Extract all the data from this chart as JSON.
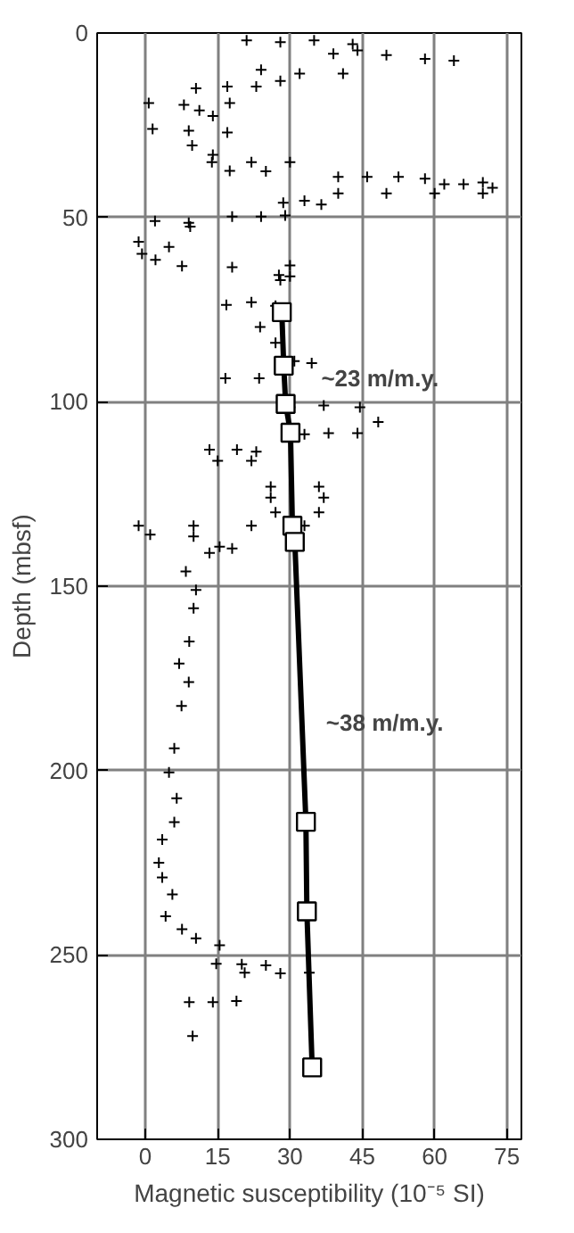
{
  "chart_data": {
    "type": "scatter",
    "xlabel": "Magnetic susceptibility (10⁻⁵ SI)",
    "ylabel": "Depth (mbsf)",
    "xlim": [
      -10,
      78
    ],
    "ylim": [
      300,
      0
    ],
    "xticks": [
      0,
      15,
      30,
      45,
      60,
      75
    ],
    "yticks": [
      0,
      50,
      100,
      150,
      200,
      250,
      300
    ],
    "grid": true,
    "series": [
      {
        "marker": "cross",
        "color": "#000000",
        "x": [
          21,
          28,
          35,
          43,
          39,
          44,
          50,
          58,
          64,
          24,
          32,
          41,
          28,
          10.5,
          17,
          23,
          0.7,
          8,
          17.5,
          11.2,
          14,
          1.5,
          9,
          17,
          9.7,
          14,
          13.8,
          22,
          30,
          17.5,
          25,
          40,
          46,
          52.5,
          58,
          62,
          66,
          70,
          72,
          40,
          50,
          60,
          70,
          28.6,
          33,
          36.5,
          18,
          24,
          29,
          2,
          9,
          9.3,
          -1.4,
          4.9,
          -0.7,
          2.1,
          7.6,
          18,
          30,
          27.7,
          30,
          28,
          16.8,
          22,
          27,
          23.8,
          27,
          30.9,
          34.5,
          16.6,
          23.6,
          30,
          37,
          44.5,
          48.3,
          33,
          38,
          44,
          13.3,
          19,
          23,
          15,
          22,
          26,
          36,
          26,
          37,
          27,
          36,
          -1.4,
          10,
          22,
          33,
          1,
          10,
          15.4,
          18,
          13.3,
          8.4,
          10.5,
          10,
          9.1,
          7,
          9,
          7.5,
          6,
          4.9,
          6.5,
          6,
          3.5,
          2.8,
          3.5,
          5.6,
          4.2,
          7.6,
          10.5,
          15.4,
          14.7,
          20,
          25,
          20.6,
          28,
          34,
          9.1,
          14,
          18.9,
          9.8
        ],
        "values": [
          2,
          2.5,
          2,
          3,
          5.6,
          4.7,
          6,
          7,
          7.5,
          10,
          11,
          11,
          13,
          15,
          14.5,
          14.5,
          19,
          19.5,
          19,
          21,
          22.5,
          26,
          26.5,
          27,
          30.5,
          33,
          35,
          35,
          35,
          37.4,
          37.5,
          39,
          39,
          39,
          39.5,
          41,
          41,
          40.5,
          42,
          43.5,
          43.5,
          43.5,
          43.5,
          46,
          45.5,
          46.5,
          49.8,
          49.8,
          49.5,
          51,
          51.5,
          52.5,
          56.6,
          58,
          59.9,
          61.5,
          63.2,
          63.5,
          63,
          65.6,
          66,
          67,
          73.7,
          73,
          74,
          79.7,
          84,
          89,
          89.5,
          93.6,
          93.6,
          101.5,
          101,
          101.5,
          105.5,
          108.8,
          108.5,
          108.5,
          113,
          113,
          113.5,
          116,
          116,
          123,
          123,
          126,
          126,
          130,
          130,
          133.6,
          133.6,
          133.6,
          133.6,
          136,
          136.5,
          139.3,
          139.8,
          141,
          146,
          151,
          156,
          165,
          171,
          176,
          182.5,
          194,
          200.5,
          207.5,
          214,
          218.7,
          225,
          229,
          233.6,
          239.5,
          243,
          245.5,
          247.4,
          252.4,
          252.5,
          252.8,
          254.8,
          255,
          254.8,
          262.8,
          262.8,
          262.5,
          272
        ]
      },
      {
        "type": "line",
        "marker": "square",
        "line_style": "solid",
        "color": "#000000",
        "x": [
          28.3,
          28.7,
          29.1,
          30.1,
          30.5,
          31,
          33.3,
          33.5,
          34.6
        ],
        "values": [
          75.7,
          90.2,
          100.6,
          108.4,
          133.6,
          138,
          213.9,
          238.2,
          280.5
        ]
      }
    ],
    "annotations": [
      "~23 m/m.y.",
      "~38 m/m.y."
    ]
  }
}
